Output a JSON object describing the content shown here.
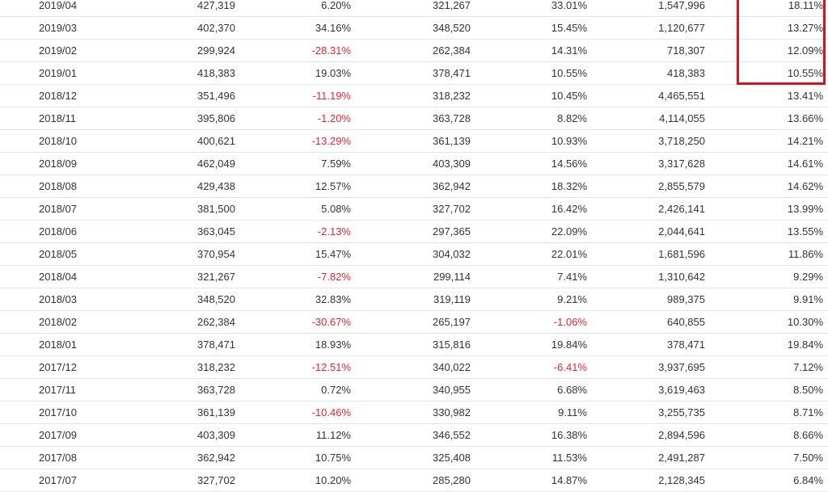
{
  "colors": {
    "negative": "#e8242e",
    "highlight": "#d6121b",
    "text": "#333333"
  },
  "rows": [
    [
      "2019/04",
      "427,319",
      "6.20%",
      "321,267",
      "33.01%",
      "1,547,996",
      "18.11%"
    ],
    [
      "2019/03",
      "402,370",
      "34.16%",
      "348,520",
      "15.45%",
      "1,120,677",
      "13.27%"
    ],
    [
      "2019/02",
      "299,924",
      "-28.31%",
      "262,384",
      "14.31%",
      "718,307",
      "12.09%"
    ],
    [
      "2019/01",
      "418,383",
      "19.03%",
      "378,471",
      "10.55%",
      "418,383",
      "10.55%"
    ],
    [
      "2018/12",
      "351,496",
      "-11.19%",
      "318,232",
      "10.45%",
      "4,465,551",
      "13.41%"
    ],
    [
      "2018/11",
      "395,806",
      "-1.20%",
      "363,728",
      "8.82%",
      "4,114,055",
      "13.66%"
    ],
    [
      "2018/10",
      "400,621",
      "-13.29%",
      "361,139",
      "10.93%",
      "3,718,250",
      "14.21%"
    ],
    [
      "2018/09",
      "462,049",
      "7.59%",
      "403,309",
      "14.56%",
      "3,317,628",
      "14.61%"
    ],
    [
      "2018/08",
      "429,438",
      "12.57%",
      "362,942",
      "18.32%",
      "2,855,579",
      "14.62%"
    ],
    [
      "2018/07",
      "381,500",
      "5.08%",
      "327,702",
      "16.42%",
      "2,426,141",
      "13.99%"
    ],
    [
      "2018/06",
      "363,045",
      "-2.13%",
      "297,365",
      "22.09%",
      "2,044,641",
      "13.55%"
    ],
    [
      "2018/05",
      "370,954",
      "15.47%",
      "304,032",
      "22.01%",
      "1,681,596",
      "11.86%"
    ],
    [
      "2018/04",
      "321,267",
      "-7.82%",
      "299,114",
      "7.41%",
      "1,310,642",
      "9.29%"
    ],
    [
      "2018/03",
      "348,520",
      "32.83%",
      "319,119",
      "9.21%",
      "989,375",
      "9.91%"
    ],
    [
      "2018/02",
      "262,384",
      "-30.67%",
      "265,197",
      "-1.06%",
      "640,855",
      "10.30%"
    ],
    [
      "2018/01",
      "378,471",
      "18.93%",
      "315,816",
      "19.84%",
      "378,471",
      "19.84%"
    ],
    [
      "2017/12",
      "318,232",
      "-12.51%",
      "340,022",
      "-6.41%",
      "3,937,695",
      "7.12%"
    ],
    [
      "2017/11",
      "363,728",
      "0.72%",
      "340,955",
      "6.68%",
      "3,619,463",
      "8.50%"
    ],
    [
      "2017/10",
      "361,139",
      "-10.46%",
      "330,982",
      "9.11%",
      "3,255,735",
      "8.71%"
    ],
    [
      "2017/09",
      "403,309",
      "11.12%",
      "346,552",
      "16.38%",
      "2,894,596",
      "8.66%"
    ],
    [
      "2017/08",
      "362,942",
      "10.75%",
      "325,408",
      "11.53%",
      "2,491,287",
      "7.50%"
    ],
    [
      "2017/07",
      "327,702",
      "10.20%",
      "285,280",
      "14.87%",
      "2,128,345",
      "6.84%"
    ]
  ]
}
